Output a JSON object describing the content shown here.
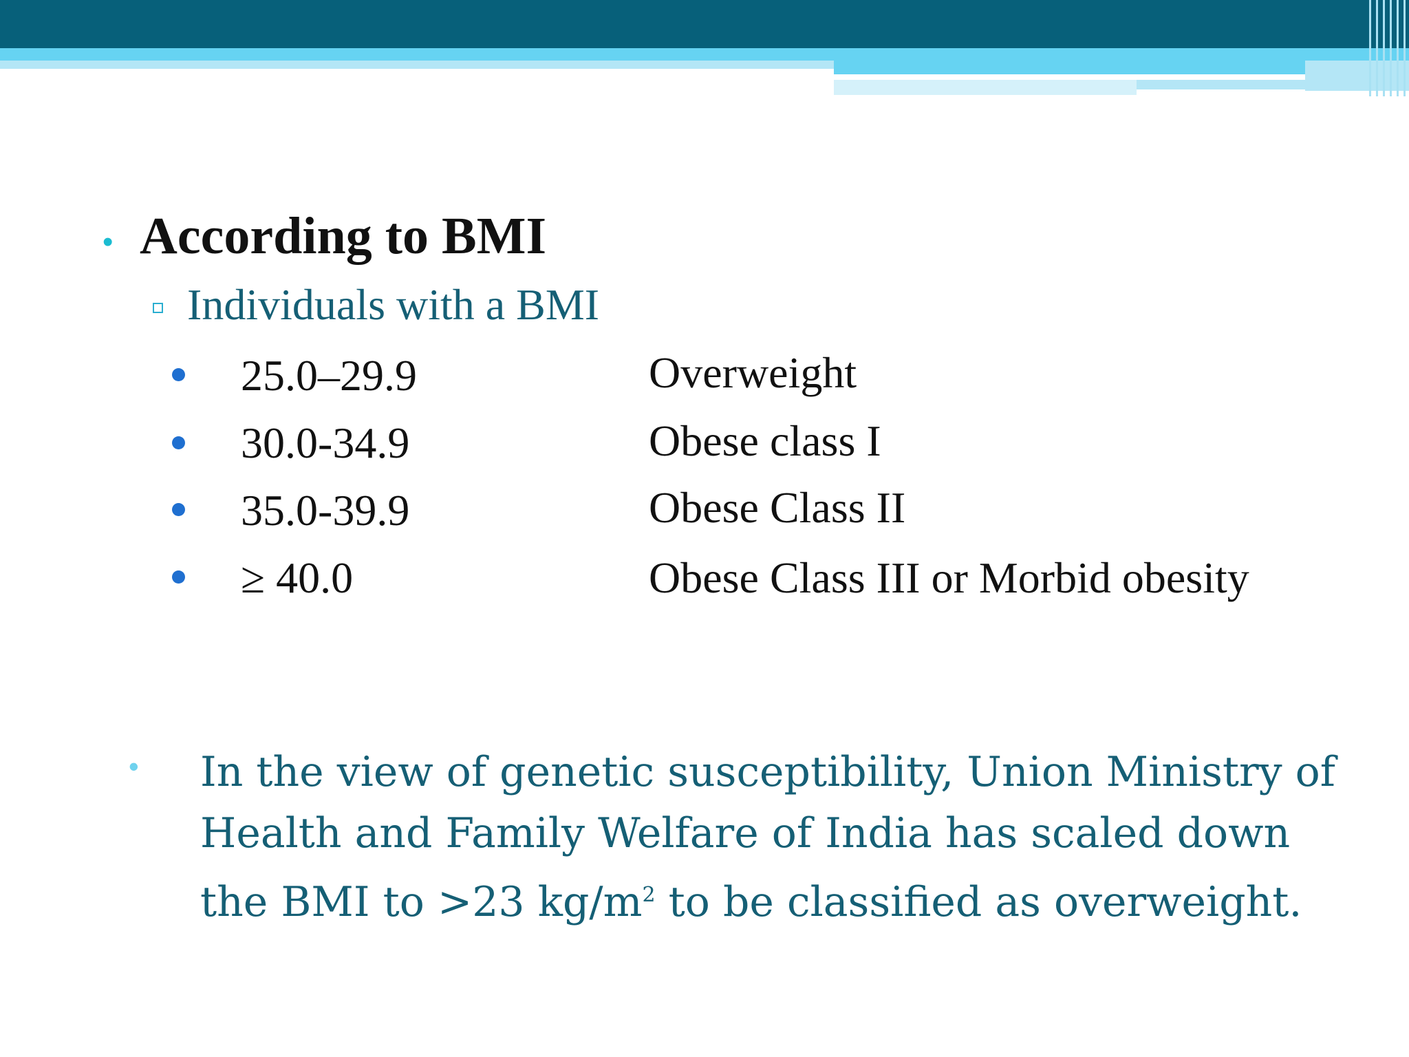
{
  "slide": {
    "heading": "According to BMI",
    "subheading": "Individuals with a BMI",
    "rows": [
      {
        "range": "25.0–29.9",
        "classification": "Overweight"
      },
      {
        "range": "30.0-34.9",
        "classification": "Obese class I"
      },
      {
        "range": "35.0-39.9",
        "classification": "Obese Class II"
      },
      {
        "range": "≥ 40.0",
        "classification": "Obese Class III or Morbid obesity"
      }
    ],
    "note": {
      "part1": "In the view of genetic susceptibility, Union Ministry of Health and Family Welfare of India has scaled down the BMI to >23 kg/m",
      "superscript": "2",
      "part2": " to be classified as overweight."
    }
  },
  "colors": {
    "header_dark": "#07607a",
    "header_light": "#66d3f2",
    "teal_text": "#155f75",
    "bullet_teal": "#1bbcd1",
    "bullet_blue": "#1f6fd0"
  }
}
